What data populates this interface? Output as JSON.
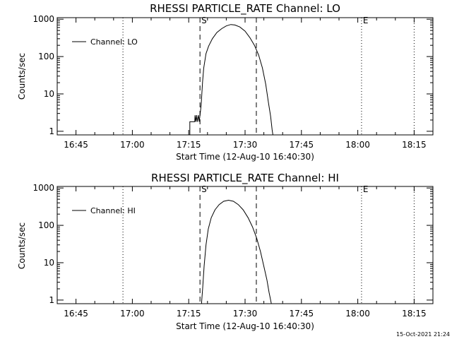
{
  "chart_data": [
    {
      "type": "line",
      "title": "RHESSI PARTICLE_RATE Channel: LO",
      "xlabel": "Start Time (12-Aug-10 16:40:30)",
      "ylabel": "Counts/sec",
      "yscale": "log",
      "xlim_minutes_since_1640": [
        0,
        100
      ],
      "ylim": [
        0.8,
        1100
      ],
      "x_ticks": [
        {
          "label": "16:45",
          "min": 5
        },
        {
          "label": "17:00",
          "min": 20
        },
        {
          "label": "17:15",
          "min": 35
        },
        {
          "label": "17:30",
          "min": 50
        },
        {
          "label": "17:45",
          "min": 65
        },
        {
          "label": "18:00",
          "min": 80
        },
        {
          "label": "18:15",
          "min": 95
        }
      ],
      "y_ticks": [
        {
          "label": "1",
          "value": 1
        },
        {
          "label": "10",
          "value": 10
        },
        {
          "label": "100",
          "value": 100
        },
        {
          "label": "1000",
          "value": 1000
        }
      ],
      "legend": {
        "label": "Channel: LO",
        "position": "top-left"
      },
      "markers": {
        "start_label": "S",
        "end_label": "E"
      },
      "vlines": [
        {
          "min": 17.5,
          "style": "dotted"
        },
        {
          "min": 38.0,
          "style": "dashed",
          "label": "S"
        },
        {
          "min": 53.0,
          "style": "dashed"
        },
        {
          "min": 81.0,
          "style": "dotted",
          "label": "E"
        },
        {
          "min": 95.0,
          "style": "dotted"
        }
      ],
      "series": [
        {
          "name": "Channel: LO",
          "x": [
            35.3,
            35.3,
            36.6,
            36.7,
            36.9,
            37.1,
            37.3,
            37.6,
            37.8,
            38.0,
            38.3,
            38.7,
            39.0,
            39.6,
            40.3,
            41.3,
            42.5,
            43.8,
            45.0,
            46.2,
            47.3,
            48.6,
            50.0,
            51.3,
            52.5,
            53.6,
            54.6,
            55.5,
            56.2,
            56.8,
            57.2,
            57.4
          ],
          "y": [
            0.8,
            1.8,
            1.8,
            2.7,
            1.8,
            2.7,
            1.8,
            2.7,
            1.8,
            2.7,
            5,
            22,
            50,
            120,
            190,
            300,
            440,
            560,
            660,
            720,
            700,
            620,
            480,
            320,
            200,
            110,
            50,
            18,
            6,
            2.5,
            1.1,
            0.8
          ]
        }
      ]
    },
    {
      "type": "line",
      "title": "RHESSI PARTICLE_RATE Channel: HI",
      "xlabel": "Start Time (12-Aug-10 16:40:30)",
      "ylabel": "Counts/sec",
      "yscale": "log",
      "xlim_minutes_since_1640": [
        0,
        100
      ],
      "ylim": [
        0.8,
        1100
      ],
      "x_ticks": [
        {
          "label": "16:45",
          "min": 5
        },
        {
          "label": "17:00",
          "min": 20
        },
        {
          "label": "17:15",
          "min": 35
        },
        {
          "label": "17:30",
          "min": 50
        },
        {
          "label": "17:45",
          "min": 65
        },
        {
          "label": "18:00",
          "min": 80
        },
        {
          "label": "18:15",
          "min": 95
        }
      ],
      "y_ticks": [
        {
          "label": "1",
          "value": 1
        },
        {
          "label": "10",
          "value": 10
        },
        {
          "label": "100",
          "value": 100
        },
        {
          "label": "1000",
          "value": 1000
        }
      ],
      "legend": {
        "label": "Channel: HI",
        "position": "top-left"
      },
      "markers": {
        "start_label": "S",
        "end_label": "E"
      },
      "vlines": [
        {
          "min": 17.5,
          "style": "dotted"
        },
        {
          "min": 38.0,
          "style": "dashed",
          "label": "S"
        },
        {
          "min": 53.0,
          "style": "dashed"
        },
        {
          "min": 81.0,
          "style": "dotted",
          "label": "E"
        },
        {
          "min": 95.0,
          "style": "dotted"
        }
      ],
      "series": [
        {
          "name": "Channel: HI",
          "x": [
            38.4,
            38.7,
            39.1,
            39.6,
            40.2,
            41.0,
            42.0,
            43.1,
            44.3,
            45.6,
            46.9,
            48.2,
            49.5,
            50.8,
            52.0,
            53.1,
            54.1,
            55.0,
            55.8,
            56.4,
            56.8,
            57.0
          ],
          "y": [
            0.8,
            2,
            8,
            30,
            80,
            160,
            260,
            360,
            440,
            470,
            440,
            360,
            260,
            160,
            90,
            45,
            20,
            8,
            3.5,
            1.6,
            1.0,
            0.8
          ]
        }
      ]
    }
  ],
  "footer": {
    "timestamp": "15-Oct-2021 21:24"
  }
}
